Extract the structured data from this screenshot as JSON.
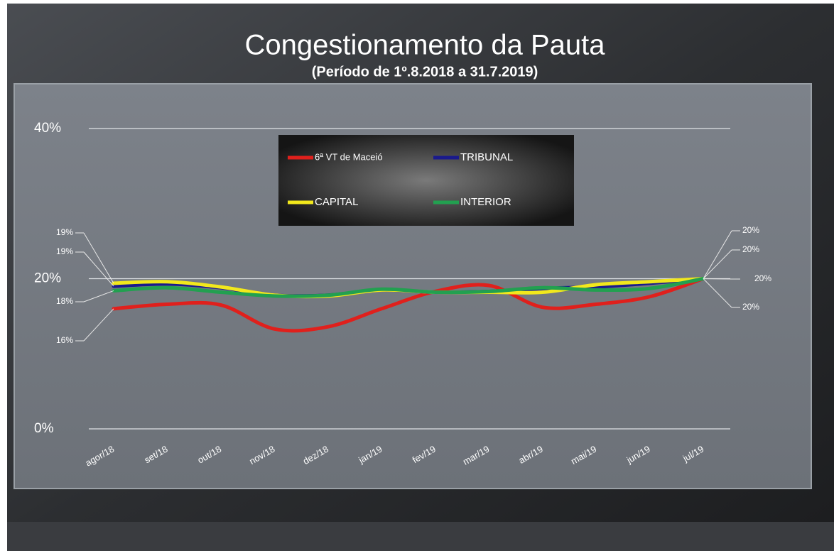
{
  "chart_data": {
    "type": "line",
    "title": "Congestionamento da Pauta",
    "subtitle": "(Período de 1º.8.2018  a  31.7.2019)",
    "categories": [
      "agor/18",
      "set/18",
      "out/18",
      "nov/18",
      "dez/18",
      "jan/19",
      "fev/19",
      "mar/19",
      "abr/19",
      "mai/19",
      "jun/19",
      "jul/19"
    ],
    "ylim": [
      0,
      40
    ],
    "yticks": [
      {
        "value": 0,
        "label": "0%"
      },
      {
        "value": 20,
        "label": "20%"
      },
      {
        "value": 40,
        "label": "40%"
      }
    ],
    "grid": true,
    "legend": "top",
    "series": [
      {
        "name": "6ª VT de Maceió",
        "color": "#e0201c",
        "values": [
          16,
          16.6,
          16.5,
          13.3,
          13.6,
          16,
          18.3,
          19.1,
          16.2,
          16.6,
          17.6,
          20
        ],
        "value_labels": [
          "16%",
          null,
          null,
          null,
          null,
          null,
          null,
          null,
          null,
          null,
          null,
          "20%"
        ]
      },
      {
        "name": "TRIBUNAL",
        "color": "#1a1a8c",
        "values": [
          19,
          19.3,
          18.8,
          17.8,
          17.8,
          18.5,
          18.2,
          18.3,
          18.7,
          18.9,
          19.4,
          20
        ],
        "value_labels": [
          "19%",
          null,
          null,
          null,
          null,
          null,
          null,
          null,
          null,
          null,
          null,
          "20%"
        ]
      },
      {
        "name": "CAPITAL",
        "color": "#f2e81c",
        "values": [
          19.4,
          19.6,
          18.9,
          17.8,
          17.7,
          18.5,
          18.2,
          18.2,
          18.2,
          19.2,
          19.6,
          20
        ],
        "value_labels": [
          "19%",
          null,
          null,
          null,
          null,
          null,
          null,
          null,
          null,
          null,
          null,
          "20%"
        ]
      },
      {
        "name": "INTERIOR",
        "color": "#22a050",
        "values": [
          18.4,
          18.8,
          18.2,
          17.7,
          17.8,
          18.6,
          18.2,
          18.3,
          18.8,
          18.5,
          18.7,
          20
        ],
        "value_labels": [
          "18%",
          null,
          null,
          null,
          null,
          null,
          null,
          null,
          null,
          null,
          null,
          "20%"
        ]
      }
    ]
  }
}
